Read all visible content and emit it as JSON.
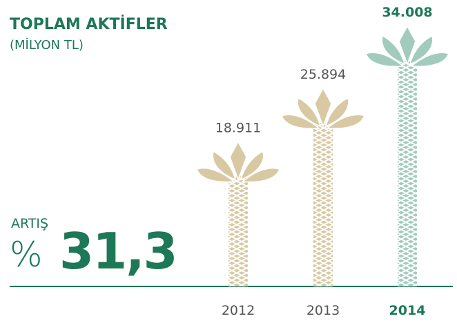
{
  "chart_data": {
    "type": "pictogram",
    "title": "TOPLAM AKTİFLER",
    "subtitle": "(MİLYON TL)",
    "categories": [
      "2012",
      "2013",
      "2014"
    ],
    "values": [
      18911,
      25894,
      34008
    ],
    "value_labels": [
      "18.911",
      "25.894",
      "34.008"
    ],
    "colors": [
      "#d9c9a3",
      "#d9c9a3",
      "#a3cbbd"
    ],
    "highlight": 2,
    "annotation": {
      "label": "ARTIŞ",
      "prefix": "%",
      "value": "31,3"
    }
  }
}
